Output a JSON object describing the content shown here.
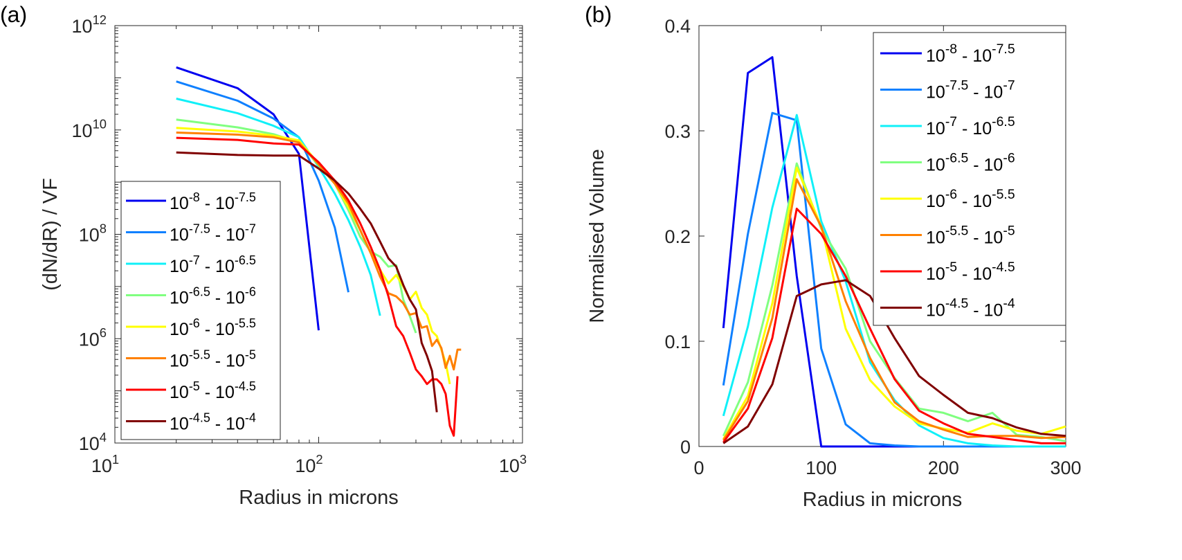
{
  "chart_data": [
    {
      "panel_label": "(a)",
      "type": "line",
      "xscale": "log",
      "yscale": "log",
      "xlabel": "Radius in microns",
      "ylabel": "(dN/dR) / VF",
      "xlim": [
        10,
        1000
      ],
      "ylim": [
        10000,
        1000000000000
      ],
      "xticks": [
        {
          "base": "10",
          "exp": "1",
          "v": 1
        },
        {
          "base": "10",
          "exp": "2",
          "v": 2
        },
        {
          "base": "10",
          "exp": "3",
          "v": 3
        }
      ],
      "yticks": [
        {
          "base": "10",
          "exp": "4",
          "v": 4
        },
        {
          "base": "10",
          "exp": "6",
          "v": 6
        },
        {
          "base": "10",
          "exp": "8",
          "v": 8
        },
        {
          "base": "10",
          "exp": "10",
          "v": 10
        },
        {
          "base": "10",
          "exp": "12",
          "v": 12
        }
      ],
      "legend_position": "lower-left",
      "x_start": 20,
      "x_step": 20,
      "series": [
        {
          "name": "10^-8 - 10^-7.5",
          "color": "#0000f0",
          "log10_values": [
            11.2,
            10.8,
            10.3,
            9.54,
            6.16
          ]
        },
        {
          "name": "10^-7.5 - 10^-7",
          "color": "#0f80ff",
          "log10_values": [
            10.93,
            10.56,
            10.22,
            9.86,
            9.03,
            8.13,
            6.89
          ]
        },
        {
          "name": "10^-7 - 10^-6.5",
          "color": "#10f0f8",
          "log10_values": [
            10.6,
            10.32,
            10.08,
            9.86,
            9.29,
            8.78,
            8.27,
            7.76,
            7.22,
            6.44
          ]
        },
        {
          "name": "10^-6.5 - 10^-6",
          "color": "#80ff80",
          "log10_values": [
            10.2,
            10.05,
            9.92,
            9.76,
            9.32,
            8.97,
            8.46,
            7.95,
            7.67,
            7.57,
            7.38,
            7.41,
            6.75,
            6.43,
            6.11
          ]
        },
        {
          "name": "10^-6 - 10^-5.5",
          "color": "#ffff00",
          "log10_values": [
            10.04,
            9.97,
            9.89,
            9.8,
            9.35,
            8.97,
            8.52,
            8.08,
            7.64,
            7.32,
            7.06,
            7.22,
            7.0,
            6.75,
            6.9,
            6.59,
            6.46,
            6.14,
            6.05,
            5.79,
            5.54,
            5.13
          ]
        },
        {
          "name": "10^-5.5 - 10^-5",
          "color": "#ff8000",
          "log10_values": [
            9.95,
            9.91,
            9.86,
            9.76,
            9.34,
            8.97,
            8.59,
            8.08,
            7.64,
            7.19,
            6.87,
            6.81,
            6.68,
            6.46,
            6.49,
            6.21,
            6.24,
            5.86,
            5.98,
            5.82,
            5.44,
            5.67,
            5.41,
            5.79,
            5.79
          ]
        },
        {
          "name": "10^-5 - 10^-4.5",
          "color": "#ff0000",
          "log10_values": [
            9.85,
            9.81,
            9.74,
            9.72,
            9.38,
            9.03,
            8.65,
            8.21,
            7.76,
            7.32,
            6.81,
            6.24,
            6.05,
            5.73,
            5.41,
            5.28,
            5.13,
            5.22,
            5.22,
            5.13,
            4.94,
            4.33,
            4.14,
            5.28
          ]
        },
        {
          "name": "10^-4.5 - 10^-4",
          "color": "#800000",
          "log10_values": [
            9.57,
            9.52,
            9.51,
            9.51,
            9.26,
            9.03,
            8.78,
            8.49,
            8.21,
            7.86,
            7.54,
            7.38,
            7.03,
            6.75,
            6.56,
            5.92,
            5.67,
            5.38,
            4.59
          ]
        }
      ]
    },
    {
      "panel_label": "(b)",
      "type": "line",
      "xlabel": "Radius in microns",
      "ylabel": "Normalised Volume",
      "xlim": [
        0,
        300
      ],
      "ylim": [
        0,
        0.4
      ],
      "xticks": [
        "0",
        "100",
        "200",
        "300"
      ],
      "yticks": [
        "0",
        "0.1",
        "0.2",
        "0.3",
        "0.4"
      ],
      "legend_position": "top-right",
      "x": [
        20,
        40,
        60,
        80,
        100,
        120,
        140,
        160,
        180,
        200,
        220,
        240,
        260,
        280,
        300
      ],
      "series": [
        {
          "name": "10^-8 - 10^-7.5",
          "color": "#0000f0",
          "values": [
            0.1125,
            0.355,
            0.37,
            0.162,
            0,
            0,
            0,
            0,
            0,
            0,
            0,
            0,
            0,
            0,
            0
          ]
        },
        {
          "name": "10^-7.5 - 10^-7",
          "color": "#0f80ff",
          "values": [
            0.058,
            0.202,
            0.317,
            0.31,
            0.093,
            0.021,
            0.003,
            0.001,
            0,
            0,
            0,
            0,
            0,
            0,
            0
          ]
        },
        {
          "name": "10^-7 - 10^-6.5",
          "color": "#10f0f8",
          "values": [
            0.029,
            0.114,
            0.227,
            0.315,
            0.214,
            0.157,
            0.08,
            0.044,
            0.02,
            0.008,
            0.003,
            0.001,
            0,
            0,
            0
          ]
        },
        {
          "name": "10^-6.5 - 10^-6",
          "color": "#80ff80",
          "values": [
            0.01,
            0.061,
            0.153,
            0.269,
            0.207,
            0.169,
            0.1,
            0.065,
            0.036,
            0.032,
            0.024,
            0.032,
            0.011,
            0.009,
            0.005
          ]
        },
        {
          "name": "10^-6 - 10^-5.5",
          "color": "#ffff00",
          "values": [
            0.007,
            0.048,
            0.136,
            0.265,
            0.209,
            0.112,
            0.063,
            0.038,
            0.022,
            0.017,
            0.013,
            0.022,
            0.015,
            0.012,
            0.019
          ]
        },
        {
          "name": "10^-5.5 - 10^-5",
          "color": "#ff8000",
          "values": [
            0.006,
            0.043,
            0.122,
            0.254,
            0.209,
            0.138,
            0.084,
            0.042,
            0.024,
            0.016,
            0.009,
            0.01,
            0.01,
            0.008,
            0.009
          ]
        },
        {
          "name": "10^-5 - 10^-4.5",
          "color": "#ff0000",
          "values": [
            0.004,
            0.036,
            0.103,
            0.226,
            0.202,
            0.162,
            0.112,
            0.064,
            0.034,
            0.022,
            0.012,
            0.009,
            0.006,
            0.003,
            0.003
          ]
        },
        {
          "name": "10^-4.5 - 10^-4",
          "color": "#800000",
          "values": [
            0.003,
            0.019,
            0.059,
            0.143,
            0.154,
            0.158,
            0.143,
            0.103,
            0.067,
            0.049,
            0.032,
            0.027,
            0.018,
            0.012,
            0.01
          ]
        }
      ]
    }
  ]
}
